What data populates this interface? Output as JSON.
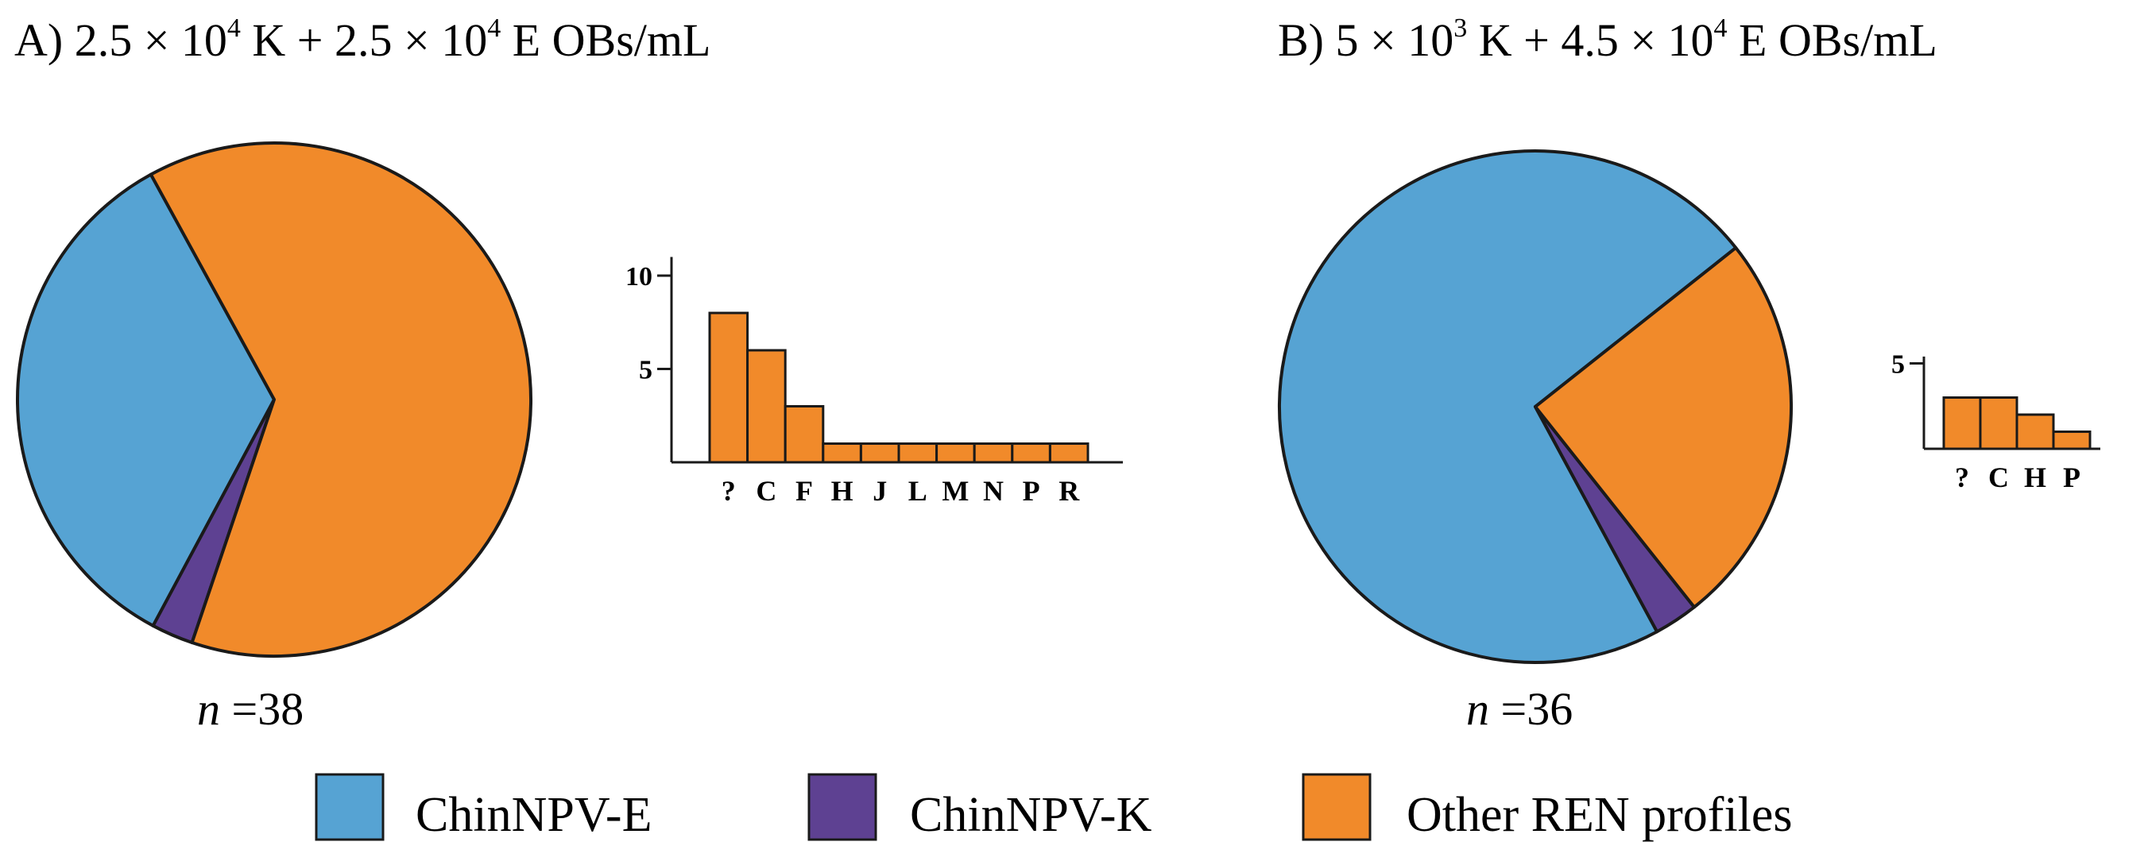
{
  "colors": {
    "ChinNPV-E": "#56a3d3",
    "ChinNPV-K": "#5e4192",
    "Other REN profiles": "#f18a2a",
    "stroke": "#1a1a1a"
  },
  "legend": {
    "items": [
      "ChinNPV-E",
      "ChinNPV-K",
      "Other REN profiles"
    ]
  },
  "chart_data": [
    {
      "id": "A",
      "type": "pie",
      "title": {
        "prefix": "A) 2.5 × 10",
        "exp1": "4",
        "middle": " K + 2.5 × 10",
        "exp2": "4",
        "suffix": " E OBs/mL"
      },
      "n_label": {
        "var": "n",
        "text": " =38"
      },
      "n": 38,
      "slices": [
        {
          "label": "ChinNPV-E",
          "value": 13
        },
        {
          "label": "ChinNPV-K",
          "value": 1
        },
        {
          "label": "Other REN profiles",
          "value": 24
        }
      ]
    },
    {
      "id": "A-inset",
      "type": "bar",
      "categories": [
        "?",
        "C",
        "F",
        "H",
        "J",
        "L",
        "M",
        "N",
        "P",
        "R"
      ],
      "values": [
        8,
        6,
        3,
        1,
        1,
        1,
        1,
        1,
        1,
        1
      ],
      "yticks": [
        5,
        10
      ],
      "ylim": [
        0,
        11
      ],
      "xlabel": "",
      "ylabel": ""
    },
    {
      "id": "B",
      "type": "pie",
      "title": {
        "prefix": "B) 5 × 10",
        "exp1": "3",
        "middle": " K + 4.5 × 10",
        "exp2": "4",
        "suffix": " E OBs/mL"
      },
      "n_label": {
        "var": "n",
        "text": " =36"
      },
      "n": 36,
      "slices": [
        {
          "label": "ChinNPV-E",
          "value": 26
        },
        {
          "label": "ChinNPV-K",
          "value": 1
        },
        {
          "label": "Other REN profiles",
          "value": 9
        }
      ]
    },
    {
      "id": "B-inset",
      "type": "bar",
      "categories": [
        "?",
        "C",
        "H",
        "P"
      ],
      "values": [
        3,
        3,
        2,
        1
      ],
      "yticks": [
        5
      ],
      "ylim": [
        0,
        5.4
      ],
      "xlabel": "",
      "ylabel": ""
    }
  ]
}
